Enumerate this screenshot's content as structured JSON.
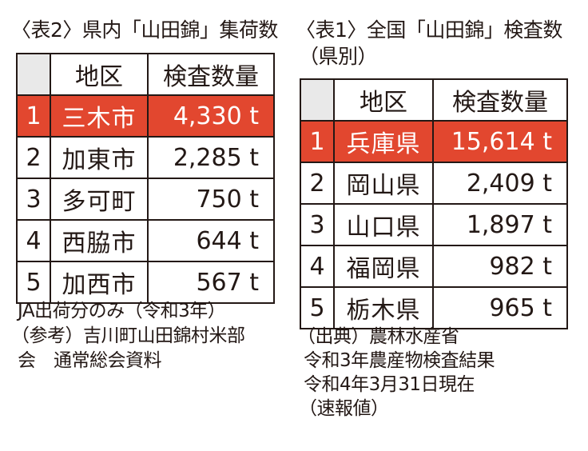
{
  "table2": {
    "title": "〈表2〉県内「山田錦」集荷数",
    "header": {
      "area": "地区",
      "qty": "検査数量"
    },
    "rows": [
      {
        "rank": "1",
        "area": "三木市",
        "qty": "4,330 t"
      },
      {
        "rank": "2",
        "area": "加東市",
        "qty": "2,285 t"
      },
      {
        "rank": "3",
        "area": "多可町",
        "qty": "750 t"
      },
      {
        "rank": "4",
        "area": "西脇市",
        "qty": "644 t"
      },
      {
        "rank": "5",
        "area": "加西市",
        "qty": "567 t"
      }
    ],
    "notes": [
      "JA出荷分のみ（令和3年）",
      "（参考）吉川町山田錦村米部",
      "会　通常総会資料"
    ]
  },
  "table1": {
    "title": [
      "〈表1〉全国「山田錦」検査数",
      "（県別）"
    ],
    "header": {
      "area": "地区",
      "qty": "検査数量"
    },
    "rows": [
      {
        "rank": "1",
        "area": "兵庫県",
        "qty": "15,614 t"
      },
      {
        "rank": "2",
        "area": "岡山県",
        "qty": "2,409 t"
      },
      {
        "rank": "3",
        "area": "山口県",
        "qty": "1,897 t"
      },
      {
        "rank": "4",
        "area": "福岡県",
        "qty": "982 t"
      },
      {
        "rank": "5",
        "area": "栃木県",
        "qty": "965 t"
      }
    ],
    "notes": [
      "（出典）農林水産省",
      "令和3年農産物検査結果",
      "令和4年3月31日現在",
      "（速報値）"
    ]
  },
  "colors": {
    "highlight": "#e2472f",
    "header_blank": "#e9e9e9",
    "text": "#231815"
  }
}
